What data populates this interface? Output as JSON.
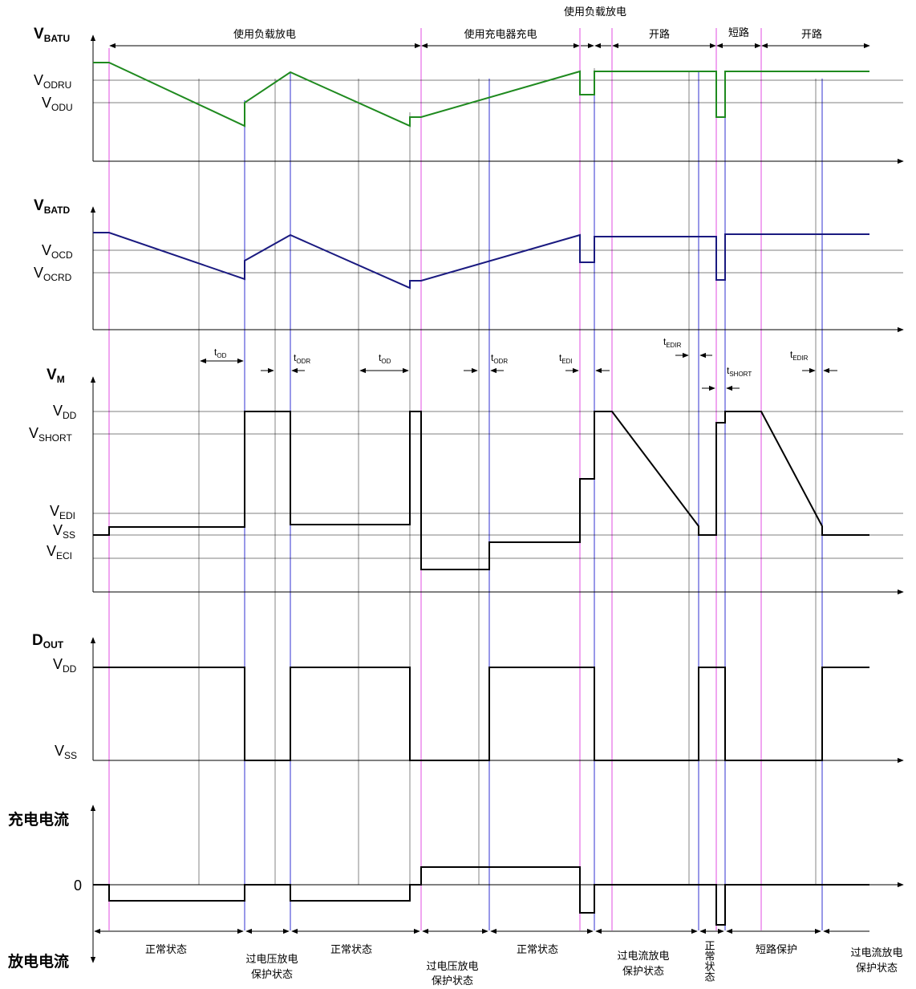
{
  "top_annotations": {
    "load_discharge_1": "使用负载放电",
    "charger_charge": "使用充电器充电",
    "load_discharge_2": "使用负载放电",
    "open_circuit_1": "开路",
    "short_circuit": "短路",
    "open_circuit_2": "开路"
  },
  "panels": {
    "vbatu": {
      "title_main": "V",
      "title_sub": "BATU",
      "levels": [
        {
          "main": "V",
          "sub": "ODRU"
        },
        {
          "main": "V",
          "sub": "ODU"
        }
      ]
    },
    "vbatd": {
      "title_main": "V",
      "title_sub": "BATD",
      "levels": [
        {
          "main": "V",
          "sub": "OCD"
        },
        {
          "main": "V",
          "sub": "OCRD"
        }
      ]
    },
    "vm": {
      "title_main": "V",
      "title_sub": "M",
      "levels": [
        {
          "main": "V",
          "sub": "DD"
        },
        {
          "main": "V",
          "sub": "SHORT"
        },
        {
          "main": "V",
          "sub": "EDI"
        },
        {
          "main": "V",
          "sub": "SS"
        },
        {
          "main": "V",
          "sub": "ECI"
        }
      ]
    },
    "dout": {
      "title_main": "D",
      "title_sub": "OUT",
      "levels": [
        {
          "main": "V",
          "sub": "DD"
        },
        {
          "main": "V",
          "sub": "SS"
        }
      ]
    },
    "current": {
      "charge_label": "充电电流",
      "zero_label": "0",
      "discharge_label": "放电电流"
    }
  },
  "timing_labels": [
    {
      "main": "t",
      "sub": "OD"
    },
    {
      "main": "t",
      "sub": "ODR"
    },
    {
      "main": "t",
      "sub": "OD"
    },
    {
      "main": "t",
      "sub": "ODR"
    },
    {
      "main": "t",
      "sub": "EDI"
    },
    {
      "main": "t",
      "sub": "EDIR"
    },
    {
      "main": "t",
      "sub": "SHORT"
    },
    {
      "main": "t",
      "sub": "EDIR"
    }
  ],
  "states": {
    "normal_1": "正常状态",
    "ovd_protect_1_line1": "过电压放电",
    "ovd_protect_1_line2": "保护状态",
    "normal_2": "正常状态",
    "ovd_protect_2_line1": "过电压放电",
    "ovd_protect_2_line2": "保护状态",
    "normal_3": "正常状态",
    "ocd_protect_1_line1": "过电流放电",
    "ocd_protect_1_line2": "保护状态",
    "normal_4": "正常状态",
    "short_protect": "短路保护",
    "ocd_protect_2_line1": "过电流放电",
    "ocd_protect_2_line2": "保护状态"
  },
  "colors": {
    "vbatu": "#1f8a1f",
    "vbatd": "#1a1a80",
    "signal": "#000000",
    "marker_magenta": "#e04ee0",
    "marker_blue": "#3030d0"
  }
}
